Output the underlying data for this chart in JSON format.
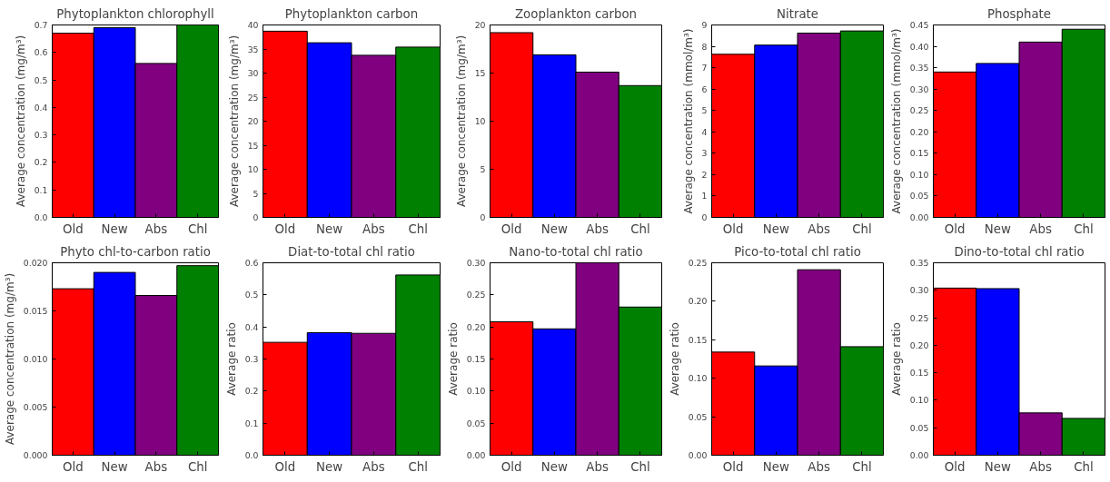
{
  "chart_data": [
    {
      "type": "bar",
      "title": "Phytoplankton chlorophyll",
      "ylabel": "Average concentration (mg/m³)",
      "categories": [
        "Old",
        "New",
        "Abs",
        "Chl"
      ],
      "values": [
        0.67,
        0.69,
        0.56,
        0.7
      ],
      "colors": [
        "#ff0000",
        "#0000ff",
        "#800080",
        "#008000"
      ],
      "ylim": [
        0,
        0.7
      ],
      "yticks": [
        {
          "value": 0,
          "label": "0.0"
        },
        0.1,
        0.2,
        0.3,
        0.4,
        0.5,
        0.6,
        0.7
      ]
    },
    {
      "type": "bar",
      "title": "Phytoplankton carbon",
      "ylabel": "Average concentration (mg/m³)",
      "categories": [
        "Old",
        "New",
        "Abs",
        "Chl"
      ],
      "values": [
        38.7,
        36.3,
        33.7,
        35.4
      ],
      "colors": [
        "#ff0000",
        "#0000ff",
        "#800080",
        "#008000"
      ],
      "ylim": [
        0,
        40
      ],
      "yticks": [
        0,
        5,
        10,
        15,
        20,
        25,
        30,
        35,
        40
      ]
    },
    {
      "type": "bar",
      "title": "Zooplankton carbon",
      "ylabel": "Average concentration (mg/m³)",
      "categories": [
        "Old",
        "New",
        "Abs",
        "Chl"
      ],
      "values": [
        19.2,
        16.9,
        15.1,
        13.7
      ],
      "colors": [
        "#ff0000",
        "#0000ff",
        "#800080",
        "#008000"
      ],
      "ylim": [
        0,
        20
      ],
      "yticks": [
        0,
        5,
        10,
        15,
        20
      ]
    },
    {
      "type": "bar",
      "title": "Nitrate",
      "ylabel": "Average concentration (mmol/m³)",
      "categories": [
        "Old",
        "New",
        "Abs",
        "Chl"
      ],
      "values": [
        7.63,
        8.06,
        8.62,
        8.72
      ],
      "colors": [
        "#ff0000",
        "#0000ff",
        "#800080",
        "#008000"
      ],
      "ylim": [
        0,
        9
      ],
      "yticks": [
        0,
        1,
        2,
        3,
        4,
        5,
        6,
        7,
        8,
        9
      ]
    },
    {
      "type": "bar",
      "title": "Phosphate",
      "ylabel": "Average concentration (mmol/m³)",
      "categories": [
        "Old",
        "New",
        "Abs",
        "Chl"
      ],
      "values": [
        0.34,
        0.36,
        0.41,
        0.44
      ],
      "colors": [
        "#ff0000",
        "#0000ff",
        "#800080",
        "#008000"
      ],
      "ylim": [
        0,
        0.45
      ],
      "yticks": [
        {
          "value": 0,
          "label": "0.00"
        },
        0.05,
        {
          "value": 0.1,
          "label": "0.10"
        },
        0.15,
        {
          "value": 0.2,
          "label": "0.20"
        },
        0.25,
        {
          "value": 0.3,
          "label": "0.30"
        },
        0.35,
        {
          "value": 0.4,
          "label": "0.40"
        },
        0.45
      ]
    },
    {
      "type": "bar",
      "title": "Phyto chl-to-carbon ratio",
      "ylabel": "Average concentration (mg/m³)",
      "categories": [
        "Old",
        "New",
        "Abs",
        "Chl"
      ],
      "values": [
        0.0173,
        0.019,
        0.0166,
        0.0197
      ],
      "colors": [
        "#ff0000",
        "#0000ff",
        "#800080",
        "#008000"
      ],
      "ylim": [
        0,
        0.02
      ],
      "yticks": [
        {
          "value": 0,
          "label": "0.000"
        },
        0.005,
        {
          "value": 0.01,
          "label": "0.010"
        },
        0.015,
        {
          "value": 0.02,
          "label": "0.020"
        }
      ]
    },
    {
      "type": "bar",
      "title": "Diat-to-total chl ratio",
      "ylabel": "Average ratio",
      "categories": [
        "Old",
        "New",
        "Abs",
        "Chl"
      ],
      "values": [
        0.352,
        0.382,
        0.38,
        0.562
      ],
      "colors": [
        "#ff0000",
        "#0000ff",
        "#800080",
        "#008000"
      ],
      "ylim": [
        0,
        0.6
      ],
      "yticks": [
        {
          "value": 0,
          "label": "0.0"
        },
        0.1,
        0.2,
        0.3,
        0.4,
        0.5,
        0.6
      ]
    },
    {
      "type": "bar",
      "title": "Nano-to-total chl ratio",
      "ylabel": "Average ratio",
      "categories": [
        "Old",
        "New",
        "Abs",
        "Chl"
      ],
      "values": [
        0.208,
        0.197,
        0.3,
        0.231
      ],
      "colors": [
        "#ff0000",
        "#0000ff",
        "#800080",
        "#008000"
      ],
      "ylim": [
        0,
        0.3
      ],
      "yticks": [
        {
          "value": 0,
          "label": "0.00"
        },
        0.05,
        {
          "value": 0.1,
          "label": "0.10"
        },
        0.15,
        {
          "value": 0.2,
          "label": "0.20"
        },
        0.25,
        {
          "value": 0.3,
          "label": "0.30"
        }
      ]
    },
    {
      "type": "bar",
      "title": "Pico-to-total chl ratio",
      "ylabel": "Average ratio",
      "categories": [
        "Old",
        "New",
        "Abs",
        "Chl"
      ],
      "values": [
        0.134,
        0.116,
        0.241,
        0.141
      ],
      "colors": [
        "#ff0000",
        "#0000ff",
        "#800080",
        "#008000"
      ],
      "ylim": [
        0,
        0.25
      ],
      "yticks": [
        {
          "value": 0,
          "label": "0.00"
        },
        0.05,
        {
          "value": 0.1,
          "label": "0.10"
        },
        0.15,
        {
          "value": 0.2,
          "label": "0.20"
        },
        0.25
      ]
    },
    {
      "type": "bar",
      "title": "Dino-to-total chl ratio",
      "ylabel": "Average ratio",
      "categories": [
        "Old",
        "New",
        "Abs",
        "Chl"
      ],
      "values": [
        0.304,
        0.303,
        0.077,
        0.067
      ],
      "colors": [
        "#ff0000",
        "#0000ff",
        "#800080",
        "#008000"
      ],
      "ylim": [
        0,
        0.35
      ],
      "yticks": [
        {
          "value": 0,
          "label": "0.00"
        },
        0.05,
        {
          "value": 0.1,
          "label": "0.10"
        },
        0.15,
        {
          "value": 0.2,
          "label": "0.20"
        },
        0.25,
        {
          "value": 0.3,
          "label": "0.30"
        },
        0.35
      ]
    }
  ]
}
